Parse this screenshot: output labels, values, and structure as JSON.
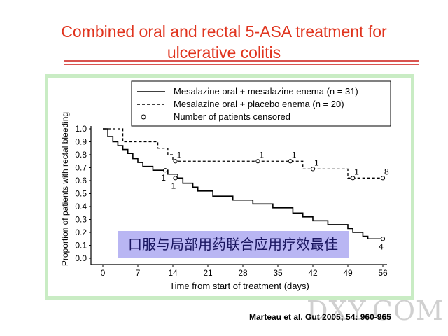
{
  "slide": {
    "title_line1": "Combined oral and rectal 5-ASA treatment for",
    "title_line2": "ulcerative colitis",
    "chinese_caption": "口服与局部用药联合应用疗效最佳",
    "citation": "Marteau et al. Gut 2005; 54: 960-965",
    "watermark": "DXY.COM"
  },
  "chart_data": {
    "type": "line",
    "title": "",
    "xlabel": "Time from start of treatment (days)",
    "ylabel": "Proportion of patients with rectal bleeding",
    "xlim": [
      0,
      56
    ],
    "ylim": [
      0,
      1.0
    ],
    "x_ticks": [
      0,
      7,
      14,
      21,
      28,
      35,
      42,
      49,
      56
    ],
    "y_ticks": [
      0.0,
      0.1,
      0.2,
      0.3,
      0.4,
      0.5,
      0.6,
      0.7,
      0.8,
      0.9,
      1.0
    ],
    "legend": [
      {
        "label": "Mesalazine oral + mesalazine enema (n = 31)",
        "style": "solid"
      },
      {
        "label": "Mesalazine oral + placebo enema (n = 20)",
        "style": "dashed"
      },
      {
        "label": "Number of patients censored",
        "style": "circle"
      }
    ],
    "series": [
      {
        "name": "Mesalazine oral + mesalazine enema (n = 31)",
        "style": "solid",
        "step_points": [
          [
            0,
            1.0
          ],
          [
            1,
            0.94
          ],
          [
            2,
            0.9
          ],
          [
            3,
            0.87
          ],
          [
            4,
            0.84
          ],
          [
            5,
            0.81
          ],
          [
            6,
            0.77
          ],
          [
            7,
            0.74
          ],
          [
            8,
            0.71
          ],
          [
            10,
            0.68
          ],
          [
            12,
            0.68
          ],
          [
            13,
            0.65
          ],
          [
            15,
            0.62
          ],
          [
            16,
            0.58
          ],
          [
            18,
            0.55
          ],
          [
            19,
            0.52
          ],
          [
            22,
            0.48
          ],
          [
            26,
            0.45
          ],
          [
            30,
            0.42
          ],
          [
            34,
            0.39
          ],
          [
            38,
            0.35
          ],
          [
            40,
            0.32
          ],
          [
            42,
            0.29
          ],
          [
            45,
            0.26
          ],
          [
            49,
            0.23
          ],
          [
            50,
            0.2
          ],
          [
            52,
            0.17
          ],
          [
            53,
            0.15
          ],
          [
            56,
            0.15
          ]
        ]
      },
      {
        "name": "Mesalazine oral + placebo enema (n = 20)",
        "style": "dashed",
        "step_points": [
          [
            0,
            1.0
          ],
          [
            4,
            0.9
          ],
          [
            11,
            0.85
          ],
          [
            13,
            0.8
          ],
          [
            14,
            0.75
          ],
          [
            39,
            0.75
          ],
          [
            40,
            0.69
          ],
          [
            48,
            0.69
          ],
          [
            49,
            0.62
          ],
          [
            56,
            0.62
          ]
        ]
      }
    ],
    "censored_marks": [
      {
        "series": 1,
        "x": 12.5,
        "y": 0.68,
        "label": "1",
        "label_side": "below"
      },
      {
        "series": 1,
        "x": 14.5,
        "y": 0.62,
        "label": "1",
        "label_side": "below"
      },
      {
        "series": 1,
        "x": 56,
        "y": 0.15,
        "label": "4",
        "label_side": "below"
      },
      {
        "series": 2,
        "x": 14.5,
        "y": 0.75,
        "label": "1",
        "label_side": "above"
      },
      {
        "series": 2,
        "x": 31,
        "y": 0.75,
        "label": "1",
        "label_side": "above"
      },
      {
        "series": 2,
        "x": 37.5,
        "y": 0.75,
        "label": "1",
        "label_side": "above"
      },
      {
        "series": 2,
        "x": 42,
        "y": 0.69,
        "label": "1",
        "label_side": "above"
      },
      {
        "series": 2,
        "x": 50,
        "y": 0.62,
        "label": "1",
        "label_side": "above"
      },
      {
        "series": 2,
        "x": 56,
        "y": 0.62,
        "label": "8",
        "label_side": "above"
      }
    ],
    "grid": false,
    "legend_position": "top-right"
  }
}
